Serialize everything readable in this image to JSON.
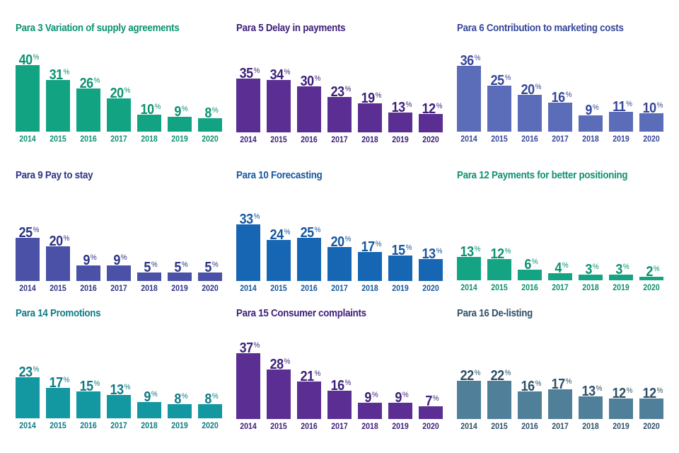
{
  "chart_data": [
    {
      "type": "bar",
      "title": "Para 3 Variation of supply agreements",
      "categories": [
        "2014",
        "2015",
        "2016",
        "2017",
        "2018",
        "2019",
        "2020"
      ],
      "values": [
        40,
        31,
        26,
        20,
        10,
        9,
        8
      ],
      "unit": "%",
      "bar_color": "#12a383",
      "text_color": "#0c9272",
      "xlabel": "",
      "ylabel": "",
      "grid": false,
      "legend": "none"
    },
    {
      "type": "bar",
      "title": "Para 5 Delay in payments",
      "categories": [
        "2014",
        "2015",
        "2016",
        "2017",
        "2018",
        "2019",
        "2020"
      ],
      "values": [
        35,
        34,
        30,
        23,
        19,
        13,
        12
      ],
      "unit": "%",
      "bar_color": "#5b2e93",
      "text_color": "#3c1f78",
      "xlabel": "",
      "ylabel": "",
      "grid": false,
      "legend": "none"
    },
    {
      "type": "bar",
      "title": "Para 6 Contribution to marketing costs",
      "categories": [
        "2014",
        "2015",
        "2016",
        "2017",
        "2018",
        "2019",
        "2020"
      ],
      "values": [
        36,
        25,
        20,
        16,
        9,
        11,
        10
      ],
      "unit": "%",
      "bar_color": "#5b6db8",
      "text_color": "#36479a",
      "xlabel": "",
      "ylabel": "",
      "grid": false,
      "legend": "none"
    },
    {
      "type": "bar",
      "title": "Para 9 Pay to stay",
      "categories": [
        "2014",
        "2015",
        "2016",
        "2017",
        "2018",
        "2019",
        "2020"
      ],
      "values": [
        25,
        20,
        9,
        9,
        5,
        5,
        5
      ],
      "unit": "%",
      "bar_color": "#4a51a6",
      "text_color": "#2d3484",
      "xlabel": "",
      "ylabel": "",
      "grid": false,
      "legend": "none"
    },
    {
      "type": "bar",
      "title": "Para 10 Forecasting",
      "categories": [
        "2014",
        "2015",
        "2016",
        "2017",
        "2018",
        "2019",
        "2020"
      ],
      "values": [
        33,
        24,
        25,
        20,
        17,
        15,
        13
      ],
      "unit": "%",
      "bar_color": "#1766b4",
      "text_color": "#15579f",
      "xlabel": "",
      "ylabel": "",
      "grid": false,
      "legend": "none"
    },
    {
      "type": "bar",
      "title": "Para 12 Payments for better positioning",
      "categories": [
        "2014",
        "2015",
        "2016",
        "2017",
        "2018",
        "2019",
        "2020"
      ],
      "values": [
        13,
        12,
        6,
        4,
        3,
        3,
        2
      ],
      "unit": "%",
      "bar_color": "#14a383",
      "text_color": "#0e9172",
      "xlabel": "",
      "ylabel": "",
      "grid": false,
      "legend": "none"
    },
    {
      "type": "bar",
      "title": "Para 14 Promotions",
      "categories": [
        "2014",
        "2015",
        "2016",
        "2017",
        "2018",
        "2019",
        "2020"
      ],
      "values": [
        23,
        17,
        15,
        13,
        9,
        8,
        8
      ],
      "unit": "%",
      "bar_color": "#1397a0",
      "text_color": "#0f7b85",
      "xlabel": "",
      "ylabel": "",
      "grid": false,
      "legend": "none"
    },
    {
      "type": "bar",
      "title": "Para 15 Consumer complaints",
      "categories": [
        "2014",
        "2015",
        "2016",
        "2017",
        "2018",
        "2019",
        "2020"
      ],
      "values": [
        37,
        28,
        21,
        16,
        9,
        9,
        7
      ],
      "unit": "%",
      "bar_color": "#5b2e93",
      "text_color": "#3c1f78",
      "xlabel": "",
      "ylabel": "",
      "grid": false,
      "legend": "none"
    },
    {
      "type": "bar",
      "title": "Para 16 De-listing",
      "categories": [
        "2014",
        "2015",
        "2016",
        "2017",
        "2018",
        "2019",
        "2020"
      ],
      "values": [
        22,
        22,
        16,
        17,
        13,
        12,
        12
      ],
      "unit": "%",
      "bar_color": "#4f7f99",
      "text_color": "#2f5068",
      "xlabel": "",
      "ylabel": "",
      "grid": false,
      "legend": "none"
    }
  ]
}
